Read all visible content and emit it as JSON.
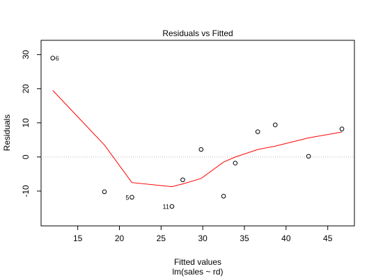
{
  "chart_data": {
    "type": "scatter",
    "title": "Residuals vs Fitted",
    "xlabel": "Fitted values",
    "subtitle": "lm(sales ~ rd)",
    "ylabel": "Residuals",
    "xlim": [
      10.6,
      48.2
    ],
    "ylim": [
      -20.2,
      34.2
    ],
    "x_ticks": [
      15,
      20,
      25,
      30,
      35,
      40,
      45
    ],
    "y_ticks": [
      -10,
      0,
      10,
      20,
      30
    ],
    "reference_line": {
      "y": 0,
      "style": "dotted",
      "color": "#bbbbbb"
    },
    "points": [
      {
        "x": 12.0,
        "y": 29.0
      },
      {
        "x": 18.2,
        "y": -10.2
      },
      {
        "x": 21.5,
        "y": -11.8
      },
      {
        "x": 26.3,
        "y": -14.5
      },
      {
        "x": 27.6,
        "y": -6.7
      },
      {
        "x": 29.8,
        "y": 2.2
      },
      {
        "x": 32.5,
        "y": -11.5
      },
      {
        "x": 33.9,
        "y": -1.8
      },
      {
        "x": 36.6,
        "y": 7.4
      },
      {
        "x": 38.7,
        "y": 9.4
      },
      {
        "x": 42.7,
        "y": 0.2
      },
      {
        "x": 46.7,
        "y": 8.2
      }
    ],
    "point_labels": [
      {
        "point": 0,
        "label": "6",
        "side": "right"
      },
      {
        "point": 2,
        "label": "5",
        "side": "left"
      },
      {
        "point": 3,
        "label": "11",
        "side": "left"
      }
    ],
    "smoother": {
      "color": "#ff0000",
      "x": [
        12.0,
        18.2,
        21.5,
        26.3,
        27.6,
        29.8,
        32.5,
        33.9,
        36.6,
        38.7,
        42.7,
        46.7
      ],
      "y": [
        19.5,
        3.5,
        -7.5,
        -8.7,
        -7.9,
        -6.3,
        -1.5,
        0.0,
        2.2,
        3.2,
        5.6,
        7.3
      ]
    }
  }
}
